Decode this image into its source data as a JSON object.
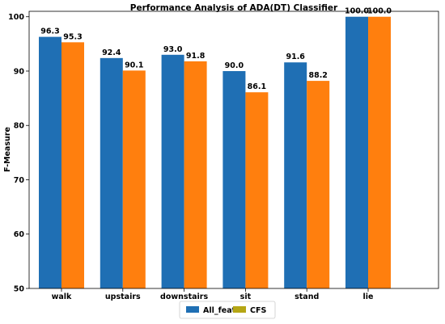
{
  "chart_data": {
    "type": "bar",
    "title": "Performance Analysis of ADA(DT)  Classifier",
    "xlabel": "",
    "ylabel": "F-Measure",
    "categories": [
      "walk",
      "upstairs",
      "downstairs",
      "sit",
      "stand",
      "lie"
    ],
    "series": [
      {
        "name": "All_feat",
        "color": "#1f6fb4",
        "values": [
          96.3,
          92.4,
          93.0,
          90.0,
          91.6,
          100.0
        ],
        "labels": [
          "96.3",
          "92.4",
          "93.0",
          "90.0",
          "91.6",
          "100.0"
        ]
      },
      {
        "name": "CFS",
        "color": "#ff7f0e",
        "legend_color": "#b5a614",
        "values": [
          95.3,
          90.1,
          91.8,
          86.1,
          88.2,
          100.0
        ],
        "labels": [
          "95.3",
          "90.1",
          "91.8",
          "86.1",
          "88.2",
          "100.0"
        ]
      }
    ],
    "ylim": [
      50,
      101
    ],
    "yticks": [
      "50",
      "60",
      "70",
      "80",
      "90",
      "100"
    ],
    "legend_position": "bottom-center",
    "grid": false
  }
}
